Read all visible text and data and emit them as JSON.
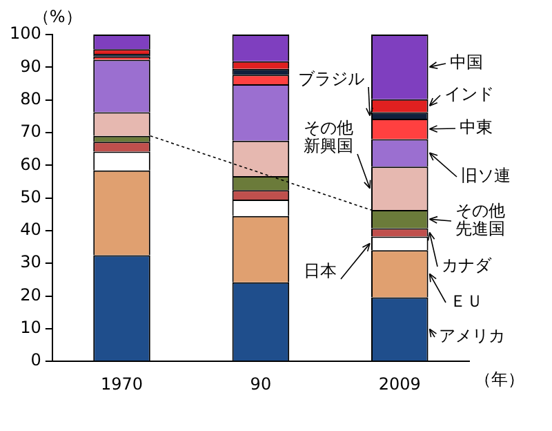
{
  "chart_data": {
    "type": "bar",
    "stacked": true,
    "ylabel": "（%）",
    "xlabel": "（年）",
    "categories": [
      "1970",
      "90",
      "2009"
    ],
    "ylim": [
      0,
      100
    ],
    "yticks": [
      0,
      10,
      20,
      30,
      40,
      50,
      60,
      70,
      80,
      90,
      100
    ],
    "grid": false,
    "legend": false,
    "series": [
      {
        "name": "アメリカ",
        "color": "#1f4e8c",
        "values": [
          32.5,
          24.2,
          19.6
        ]
      },
      {
        "name": "ＥＵ",
        "color": "#e0a070",
        "values": [
          25.9,
          20.3,
          14.4
        ]
      },
      {
        "name": "日本",
        "color": "#ffffff",
        "values": [
          5.8,
          5,
          4.2
        ]
      },
      {
        "name": "カナダ",
        "color": "#c0504d",
        "values": [
          3,
          2.9,
          2.5
        ]
      },
      {
        "name": "その他先進国",
        "color": "#6b7b3a",
        "values": [
          1.8,
          4.3,
          5.6
        ]
      },
      {
        "name": "その他新興国",
        "color": "#e6b8b0",
        "values": [
          7.2,
          10.8,
          13.3
        ]
      },
      {
        "name": "旧ソ連",
        "color": "#9b6fd0",
        "values": [
          16.1,
          17.3,
          8.4
        ]
      },
      {
        "name": "中東",
        "color": "#ff4040",
        "values": [
          1,
          2.9,
          6.2
        ]
      },
      {
        "name": "ブラジル",
        "color": "#10203c",
        "values": [
          0.8,
          1.8,
          2
        ]
      },
      {
        "name": "インド",
        "color": "#e02020",
        "values": [
          1.4,
          2.3,
          4
        ]
      },
      {
        "name": "中国",
        "color": "#7f3fbf",
        "values": [
          4.5,
          8.2,
          19.8
        ]
      }
    ]
  }
}
